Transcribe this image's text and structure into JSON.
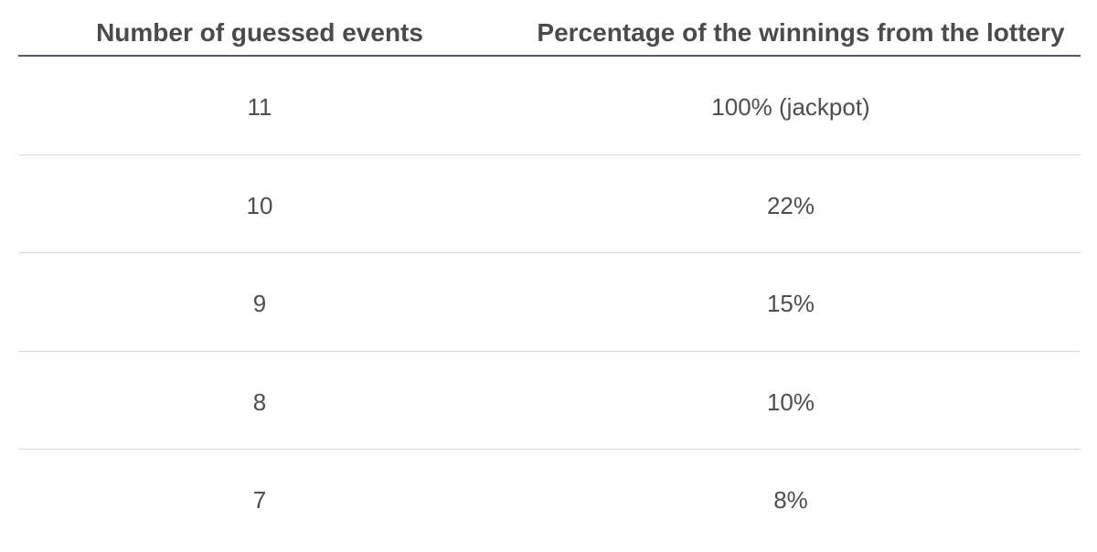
{
  "table": {
    "headers": [
      "Number of guessed events",
      "Percentage of the winnings from the lottery"
    ],
    "rows": [
      [
        "11",
        "100% (jackpot)"
      ],
      [
        "10",
        "22%"
      ],
      [
        "9",
        "15%"
      ],
      [
        "8",
        "10%"
      ],
      [
        "7",
        "8%"
      ]
    ]
  }
}
